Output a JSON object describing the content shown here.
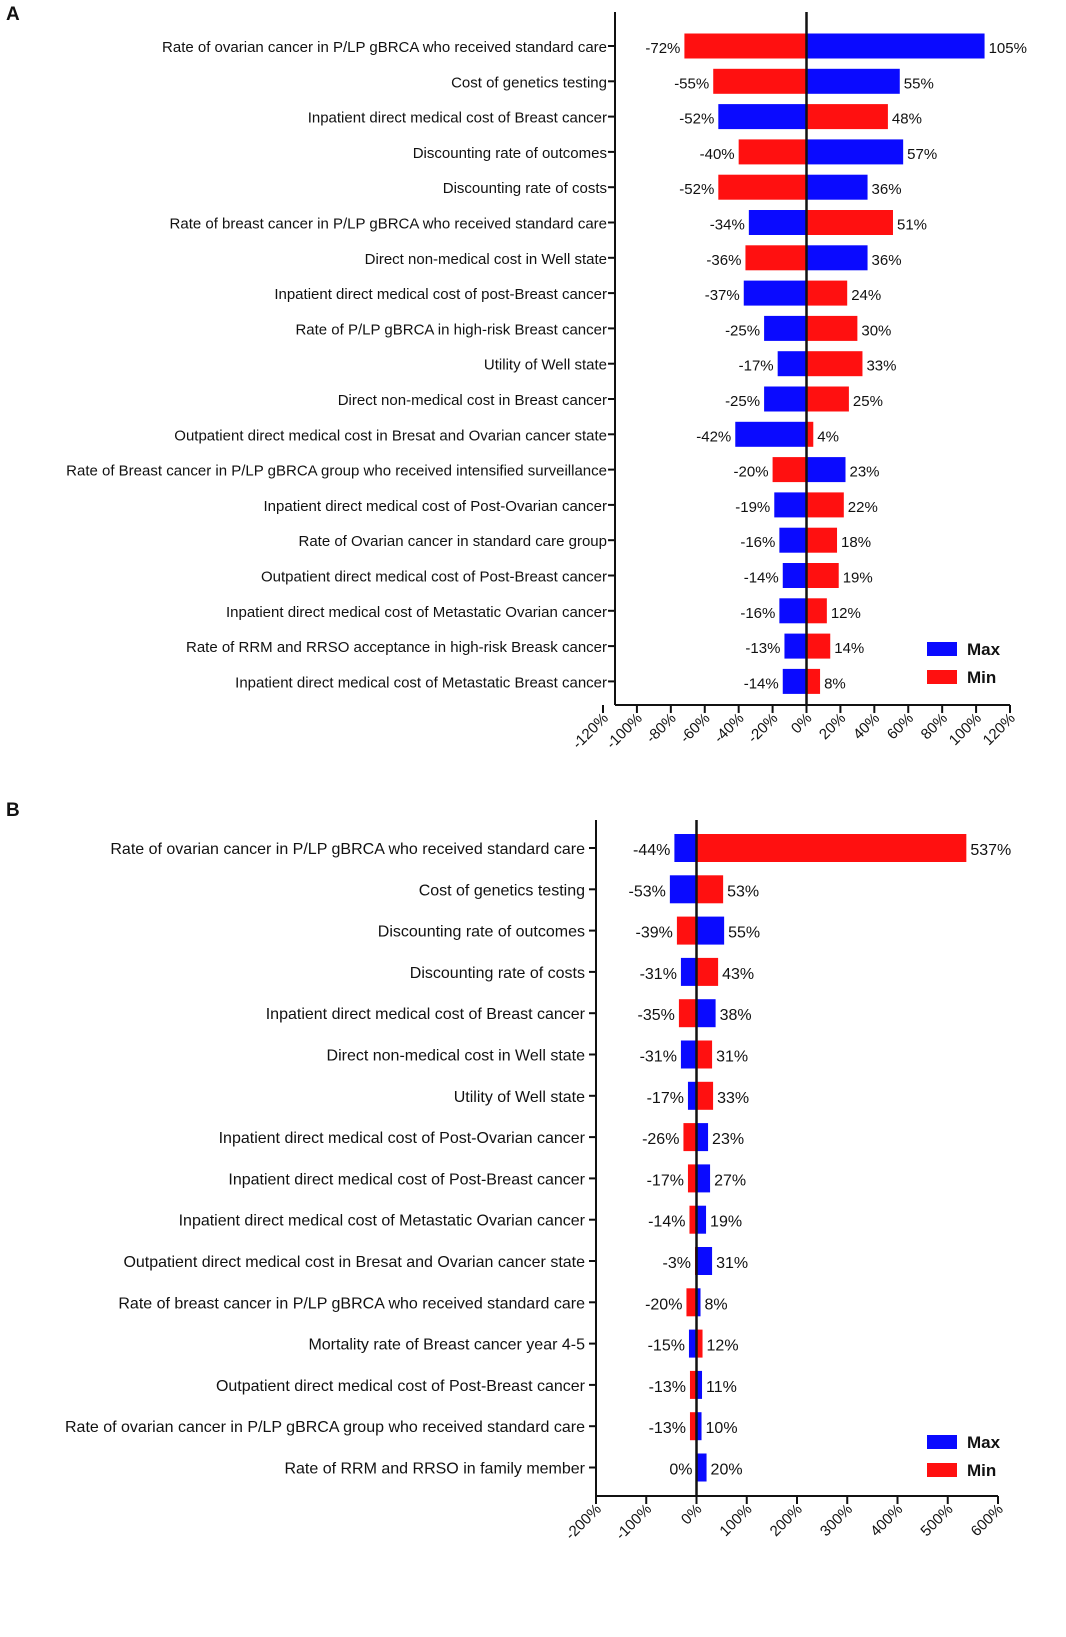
{
  "chart_data": [
    {
      "panel": "A",
      "type": "bar",
      "orientation": "horizontal",
      "subtype": "tornado",
      "categories": [
        "Rate of ovarian cancer in P/LP gBRCA who received standard care",
        "Cost of genetics testing",
        "Inpatient direct medical cost of Breast cancer",
        "Discounting rate of outcomes",
        "Discounting rate of costs",
        "Rate of breast cancer in P/LP gBRCA who received standard care",
        "Direct non-medical cost in Well state",
        "Inpatient direct medical cost of post-Breast cancer",
        "Rate of P/LP gBRCA in high-risk Breast cancer",
        "Utility of Well state",
        "Direct non-medical cost in Breast cancer",
        "Outpatient direct medical cost in Bresat and Ovarian cancer state",
        "Rate of Breast cancer in P/LP gBRCA group who received intensified surveillance",
        "Inpatient direct medical cost of Post-Ovarian cancer",
        "Rate of Ovarian cancer in standard care group",
        "Outpatient direct medical cost of Post-Breast cancer",
        "Inpatient direct medical cost of Metastatic Ovarian cancer",
        "Rate of RRM and RRSO acceptance in high-risk Breask cancer",
        "Inpatient direct medical cost of Metastatic Breast cancer"
      ],
      "negative_values": [
        -72,
        -55,
        -52,
        -40,
        -52,
        -34,
        -36,
        -37,
        -25,
        -17,
        -25,
        -42,
        -20,
        -19,
        -16,
        -14,
        -16,
        -13,
        -14
      ],
      "negative_series": [
        "Min",
        "Min",
        "Max",
        "Min",
        "Min",
        "Max",
        "Min",
        "Max",
        "Max",
        "Max",
        "Max",
        "Max",
        "Min",
        "Max",
        "Max",
        "Max",
        "Max",
        "Max",
        "Max"
      ],
      "negative_labels": [
        "-72%",
        "-55%",
        "-52%",
        "-40%",
        "-52%",
        "-34%",
        "-36%",
        "-37%",
        "-25%",
        "-17%",
        "-25%",
        "-42%",
        "-20%",
        "-19%",
        "-16%",
        "-14%",
        "-16%",
        "-13%",
        "-14%"
      ],
      "positive_values": [
        105,
        55,
        48,
        57,
        36,
        51,
        36,
        24,
        30,
        33,
        25,
        4,
        23,
        22,
        18,
        19,
        12,
        14,
        8
      ],
      "positive_series": [
        "Max",
        "Max",
        "Min",
        "Max",
        "Max",
        "Min",
        "Max",
        "Min",
        "Min",
        "Min",
        "Min",
        "Min",
        "Max",
        "Min",
        "Min",
        "Min",
        "Min",
        "Min",
        "Min"
      ],
      "positive_labels": [
        "105%",
        "55%",
        "48%",
        "57%",
        "36%",
        "51%",
        "36%",
        "24%",
        "30%",
        "33%",
        "25%",
        "4%",
        "23%",
        "22%",
        "18%",
        "19%",
        "12%",
        "14%",
        "8%"
      ],
      "xlim": [
        -120,
        120
      ],
      "x_ticks": [
        "-120%",
        "-100%",
        "-80%",
        "-60%",
        "-40%",
        "-20%",
        "0%",
        "20%",
        "40%",
        "60%",
        "80%",
        "100%",
        "120%"
      ],
      "legend": [
        {
          "name": "Max",
          "color": "#0a0aff"
        },
        {
          "name": "Min",
          "color": "#ff1010"
        }
      ],
      "legend_position": "bottom-right"
    },
    {
      "panel": "B",
      "type": "bar",
      "orientation": "horizontal",
      "subtype": "tornado",
      "categories": [
        "Rate of ovarian cancer in P/LP gBRCA who received standard care",
        "Cost of genetics testing",
        "Discounting rate of outcomes",
        "Discounting rate of costs",
        "Inpatient direct medical cost of Breast cancer",
        "Direct non-medical cost in Well state",
        "Utility of Well state",
        "Inpatient direct medical cost of Post-Ovarian cancer",
        "Inpatient direct medical cost of Post-Breast cancer",
        "Inpatient direct medical cost of Metastatic Ovarian cancer",
        "Outpatient direct medical cost in Bresat and Ovarian cancer state",
        "Rate of breast cancer in P/LP gBRCA who received standard care",
        "Mortality rate of Breast cancer year 4-5",
        "Outpatient direct medical cost of Post-Breast cancer",
        "Rate of ovarian cancer in P/LP gBRCA group who received standard care",
        "Rate of RRM and RRSO in family member"
      ],
      "negative_values": [
        -44,
        -53,
        -39,
        -31,
        -35,
        -31,
        -17,
        -26,
        -17,
        -14,
        -3,
        -20,
        -15,
        -13,
        -13,
        0
      ],
      "negative_series": [
        "Max",
        "Max",
        "Min",
        "Max",
        "Min",
        "Max",
        "Max",
        "Min",
        "Min",
        "Min",
        "Min",
        "Min",
        "Max",
        "Min",
        "Min",
        "Max"
      ],
      "negative_labels": [
        "-44%",
        "-53%",
        "-39%",
        "-31%",
        "-35%",
        "-31%",
        "-17%",
        "-26%",
        "-17%",
        "-14%",
        "-3%",
        "-20%",
        "-15%",
        "-13%",
        "-13%",
        "0%"
      ],
      "positive_values": [
        537,
        53,
        55,
        43,
        38,
        31,
        33,
        23,
        27,
        19,
        31,
        8,
        12,
        11,
        10,
        20
      ],
      "positive_series": [
        "Min",
        "Min",
        "Max",
        "Min",
        "Max",
        "Min",
        "Min",
        "Max",
        "Max",
        "Max",
        "Max",
        "Max",
        "Min",
        "Max",
        "Max",
        "Max"
      ],
      "positive_labels": [
        "537%",
        "53%",
        "55%",
        "43%",
        "38%",
        "31%",
        "33%",
        "23%",
        "27%",
        "19%",
        "31%",
        "8%",
        "12%",
        "11%",
        "10%",
        "20%"
      ],
      "xlim": [
        -200,
        600
      ],
      "x_ticks": [
        "-200%",
        "-100%",
        "0%",
        "100%",
        "200%",
        "300%",
        "400%",
        "500%",
        "600%"
      ],
      "legend": [
        {
          "name": "Max",
          "color": "#0a0aff"
        },
        {
          "name": "Min",
          "color": "#ff1010"
        }
      ],
      "legend_position": "bottom-right"
    }
  ],
  "panels": [
    {
      "letter": "A"
    },
    {
      "letter": "B"
    }
  ],
  "colors": {
    "max": "#0a0aff",
    "max_light": "#3a2cf0",
    "min": "#ff1010"
  }
}
